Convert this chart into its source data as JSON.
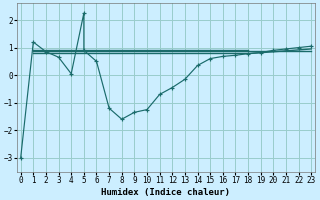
{
  "xlabel": "Humidex (Indice chaleur)",
  "bg_color": "#cceeff",
  "grid_color": "#99cccc",
  "line_color": "#1a6b6b",
  "x_main": [
    0,
    1,
    2,
    3,
    4,
    5,
    5,
    6,
    7,
    8,
    9,
    10,
    11,
    12,
    13,
    14,
    15,
    16,
    17,
    18,
    19,
    20,
    21,
    22,
    23
  ],
  "y_main": [
    -3.0,
    1.2,
    0.85,
    0.65,
    0.05,
    2.25,
    0.9,
    0.5,
    -1.2,
    -1.6,
    -1.35,
    -1.25,
    -0.7,
    -0.45,
    -0.15,
    0.35,
    0.6,
    0.68,
    0.72,
    0.78,
    0.82,
    0.9,
    0.95,
    1.0,
    1.05
  ],
  "flat_lines": [
    {
      "x": [
        1,
        18
      ],
      "y": [
        0.9,
        0.9
      ]
    },
    {
      "x": [
        1,
        18
      ],
      "y": [
        0.82,
        0.82
      ]
    },
    {
      "x": [
        1,
        23
      ],
      "y": [
        0.87,
        0.87
      ]
    },
    {
      "x": [
        18,
        23
      ],
      "y": [
        0.78,
        0.95
      ]
    }
  ],
  "xlim": [
    -0.3,
    23.3
  ],
  "ylim": [
    -3.5,
    2.6
  ],
  "yticks": [
    -3,
    -2,
    -1,
    0,
    1,
    2
  ],
  "xticks": [
    0,
    1,
    2,
    3,
    4,
    5,
    6,
    7,
    8,
    9,
    10,
    11,
    12,
    13,
    14,
    15,
    16,
    17,
    18,
    19,
    20,
    21,
    22,
    23
  ],
  "tick_fontsize": 5.5,
  "xlabel_fontsize": 6.5
}
